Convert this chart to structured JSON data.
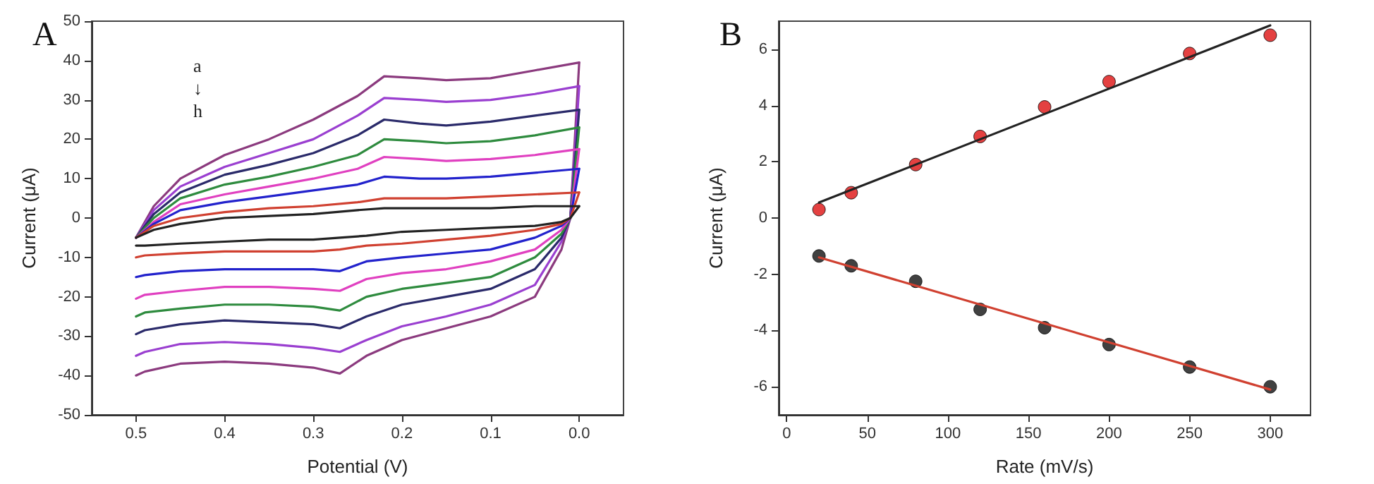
{
  "chart_data": [
    {
      "type": "line",
      "title": "A",
      "xlabel": "Potential (V)",
      "ylabel": "Current (μA)",
      "annotations": [
        "a",
        "↓",
        "h"
      ],
      "xlim": [
        0.55,
        -0.05
      ],
      "xticks": [
        0.5,
        0.4,
        0.3,
        0.2,
        0.1,
        {
          "value": 0,
          "label": "0.0"
        }
      ],
      "ylim": [
        -50,
        50
      ],
      "yticks": [
        -50,
        -40,
        -30,
        -20,
        -10,
        0,
        10,
        20,
        30,
        40,
        50
      ],
      "grid": false,
      "marker": "none",
      "line_style": "solid",
      "series": [
        {
          "color": "#8b3a7e",
          "x": [
            0.5,
            0.48,
            0.45,
            0.4,
            0.35,
            0.3,
            0.25,
            0.22,
            0.18,
            0.15,
            0.1,
            0.05,
            0.0
          ],
          "values": [
            -5,
            3,
            10,
            16,
            20,
            25,
            31,
            36,
            35.5,
            35,
            35.5,
            37.5,
            39.5
          ]
        },
        {
          "color": "#8b3a7e",
          "x": [
            0.0,
            0.01,
            0.02,
            0.05,
            0.1,
            0.15,
            0.2,
            0.24,
            0.27,
            0.3,
            0.35,
            0.4,
            0.45,
            0.49,
            0.5
          ],
          "values": [
            39.5,
            0,
            -8,
            -20,
            -25,
            -28,
            -31,
            -35,
            -39.5,
            -38,
            -37,
            -36.5,
            -37,
            -39,
            -40
          ]
        },
        {
          "color": "#9a3fd0",
          "x": [
            0.5,
            0.48,
            0.45,
            0.4,
            0.35,
            0.3,
            0.25,
            0.22,
            0.18,
            0.15,
            0.1,
            0.05,
            0.0
          ],
          "values": [
            -5,
            2,
            8,
            13,
            16.5,
            20,
            26,
            30.5,
            30,
            29.5,
            30,
            31.5,
            33.5
          ]
        },
        {
          "color": "#9a3fd0",
          "x": [
            0.0,
            0.01,
            0.02,
            0.05,
            0.1,
            0.15,
            0.2,
            0.24,
            0.27,
            0.3,
            0.35,
            0.4,
            0.45,
            0.49,
            0.5
          ],
          "values": [
            33.5,
            0,
            -6,
            -17,
            -22,
            -25,
            -27.5,
            -31,
            -34,
            -33,
            -32,
            -31.5,
            -32,
            -34,
            -35
          ]
        },
        {
          "color": "#2a2a6a",
          "x": [
            0.5,
            0.48,
            0.45,
            0.4,
            0.35,
            0.3,
            0.25,
            0.22,
            0.18,
            0.15,
            0.1,
            0.05,
            0.0
          ],
          "values": [
            -5,
            1,
            6.5,
            11,
            13.5,
            16.5,
            21,
            25,
            24,
            23.5,
            24.5,
            26,
            27.5
          ]
        },
        {
          "color": "#2a2a6a",
          "x": [
            0.0,
            0.01,
            0.02,
            0.05,
            0.1,
            0.15,
            0.2,
            0.24,
            0.27,
            0.3,
            0.35,
            0.4,
            0.45,
            0.49,
            0.5
          ],
          "values": [
            27.5,
            0,
            -5,
            -13,
            -18,
            -20,
            -22,
            -25,
            -28,
            -27,
            -26.5,
            -26,
            -27,
            -28.5,
            -29.5
          ]
        },
        {
          "color": "#2e8b3e",
          "x": [
            0.5,
            0.48,
            0.45,
            0.4,
            0.35,
            0.3,
            0.25,
            0.22,
            0.18,
            0.15,
            0.1,
            0.05,
            0.0
          ],
          "values": [
            -5,
            0,
            5,
            8.5,
            10.5,
            13,
            16,
            20,
            19.5,
            19,
            19.5,
            21,
            23
          ]
        },
        {
          "color": "#2e8b3e",
          "x": [
            0.0,
            0.01,
            0.02,
            0.05,
            0.1,
            0.15,
            0.2,
            0.24,
            0.27,
            0.3,
            0.35,
            0.4,
            0.45,
            0.49,
            0.5
          ],
          "values": [
            23,
            0,
            -4,
            -10,
            -15,
            -16.5,
            -18,
            -20,
            -23.5,
            -22.5,
            -22,
            -22,
            -23,
            -24,
            -25
          ]
        },
        {
          "color": "#e040c0",
          "x": [
            0.5,
            0.48,
            0.45,
            0.4,
            0.35,
            0.3,
            0.25,
            0.22,
            0.18,
            0.15,
            0.1,
            0.05,
            0.0
          ],
          "values": [
            -5,
            -1,
            3.5,
            6,
            8,
            10,
            12.5,
            15.5,
            15,
            14.5,
            15,
            16,
            17.5
          ]
        },
        {
          "color": "#e040c0",
          "x": [
            0.0,
            0.01,
            0.02,
            0.05,
            0.1,
            0.15,
            0.2,
            0.24,
            0.27,
            0.3,
            0.35,
            0.4,
            0.45,
            0.49,
            0.5
          ],
          "values": [
            17.5,
            0,
            -3,
            -8,
            -11,
            -13,
            -14,
            -15.5,
            -18.5,
            -18,
            -17.5,
            -17.5,
            -18.5,
            -19.5,
            -20.5
          ]
        },
        {
          "color": "#2222cc",
          "x": [
            0.5,
            0.48,
            0.45,
            0.4,
            0.35,
            0.3,
            0.25,
            0.22,
            0.18,
            0.15,
            0.1,
            0.05,
            0.0
          ],
          "values": [
            -5,
            -1.5,
            2,
            4,
            5.5,
            7,
            8.5,
            10.5,
            10,
            10,
            10.5,
            11.5,
            12.5
          ]
        },
        {
          "color": "#2222cc",
          "x": [
            0.0,
            0.01,
            0.02,
            0.05,
            0.1,
            0.15,
            0.2,
            0.24,
            0.27,
            0.3,
            0.35,
            0.4,
            0.45,
            0.49,
            0.5
          ],
          "values": [
            12.5,
            0,
            -2,
            -5,
            -8,
            -9,
            -10,
            -11,
            -13.5,
            -13,
            -13,
            -13,
            -13.5,
            -14.5,
            -15
          ]
        },
        {
          "color": "#d04030",
          "x": [
            0.5,
            0.48,
            0.45,
            0.4,
            0.35,
            0.3,
            0.25,
            0.22,
            0.18,
            0.15,
            0.1,
            0.05,
            0.0
          ],
          "values": [
            -5,
            -2,
            0,
            1.5,
            2.5,
            3,
            4,
            5,
            5,
            5,
            5.5,
            6,
            6.5
          ]
        },
        {
          "color": "#d04030",
          "x": [
            0.0,
            0.01,
            0.02,
            0.05,
            0.1,
            0.15,
            0.2,
            0.24,
            0.27,
            0.3,
            0.35,
            0.4,
            0.45,
            0.49,
            0.5
          ],
          "values": [
            6.5,
            0,
            -1.5,
            -3,
            -4.5,
            -5.5,
            -6.5,
            -7,
            -8,
            -8.5,
            -8.5,
            -8.5,
            -9,
            -9.5,
            -10
          ]
        },
        {
          "color": "#222222",
          "x": [
            0.5,
            0.48,
            0.45,
            0.4,
            0.35,
            0.3,
            0.25,
            0.22,
            0.18,
            0.15,
            0.1,
            0.05,
            0.0
          ],
          "values": [
            -5,
            -3,
            -1.5,
            0,
            0.5,
            1,
            2,
            2.5,
            2.5,
            2.5,
            2.5,
            3,
            3
          ]
        },
        {
          "color": "#222222",
          "x": [
            0.0,
            0.01,
            0.02,
            0.05,
            0.1,
            0.15,
            0.2,
            0.24,
            0.27,
            0.3,
            0.35,
            0.4,
            0.45,
            0.49,
            0.5
          ],
          "values": [
            3,
            0,
            -1,
            -2,
            -2.5,
            -3,
            -3.5,
            -4.5,
            -5,
            -5.5,
            -5.5,
            -6,
            -6.5,
            -7,
            -7
          ]
        }
      ]
    },
    {
      "type": "scatter",
      "title": "B",
      "xlabel": "Rate (mV/s)",
      "ylabel": "Current (μA)",
      "xlim": [
        -5,
        325
      ],
      "xticks": [
        0,
        50,
        100,
        150,
        200,
        250,
        300
      ],
      "ylim": [
        -7,
        7
      ],
      "yticks": [
        -6,
        -4,
        -2,
        0,
        2,
        4,
        6
      ],
      "grid": false,
      "marker": "circle",
      "x": [
        20,
        40,
        80,
        120,
        160,
        200,
        250,
        300
      ],
      "series": [
        {
          "color": "#dd1111",
          "values": [
            0.3,
            0.9,
            1.9,
            2.9,
            3.95,
            4.85,
            5.85,
            6.5
          ]
        },
        {
          "color": "#111111",
          "values": [
            -1.35,
            -1.7,
            -2.25,
            -3.25,
            -3.9,
            -4.5,
            -5.3,
            -6.0
          ]
        },
        {
          "type": "line",
          "marker": "none",
          "color": "#222222",
          "x": [
            20,
            300
          ],
          "values": [
            0.55,
            6.85
          ]
        },
        {
          "type": "line",
          "marker": "none",
          "color": "#d04030",
          "x": [
            20,
            300
          ],
          "values": [
            -1.4,
            -6.1
          ]
        }
      ]
    }
  ]
}
